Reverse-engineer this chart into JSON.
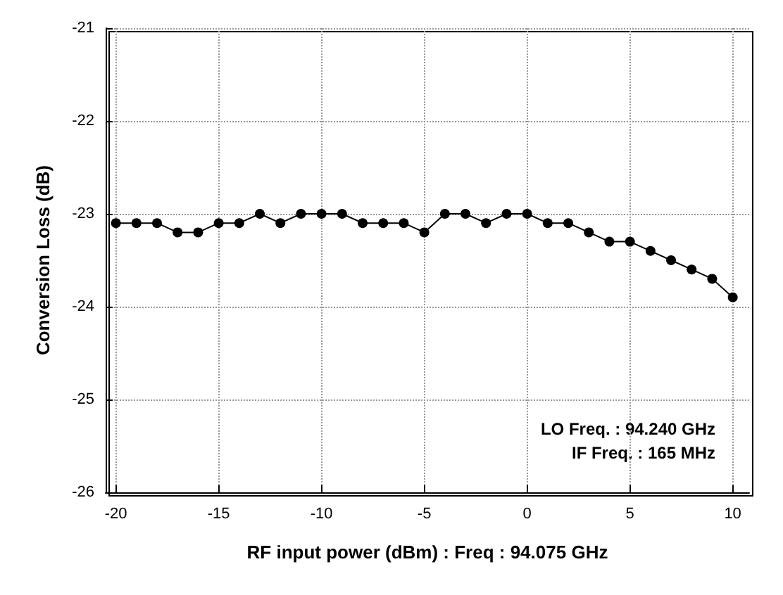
{
  "chart_data": {
    "type": "line",
    "xlabel": "RF input power (dBm) : Freq : 94.075 GHz",
    "ylabel": "Conversion Loss (dB)",
    "x": [
      -20,
      -19,
      -18,
      -17,
      -16,
      -15,
      -14,
      -13,
      -12,
      -11,
      -10,
      -9,
      -8,
      -7,
      -6,
      -5,
      -4,
      -3,
      -2,
      -1,
      0,
      1,
      2,
      3,
      4,
      5,
      6,
      7,
      8,
      9,
      10
    ],
    "series": [
      {
        "color": "#000000",
        "values": [
          -23.1,
          -23.1,
          -23.1,
          -23.2,
          -23.2,
          -23.1,
          -23.1,
          -23.0,
          -23.1,
          -23.0,
          -23.0,
          -23.0,
          -23.1,
          -23.1,
          -23.1,
          -23.2,
          -23.0,
          -23.0,
          -23.1,
          -23.0,
          -23.0,
          -23.1,
          -23.1,
          -23.2,
          -23.3,
          -23.3,
          -23.4,
          -23.5,
          -23.6,
          -23.7,
          -23.9
        ]
      }
    ],
    "xlim": [
      -20.5,
      10.8
    ],
    "xticks": [
      -20,
      -15,
      -10,
      -5,
      0,
      5,
      10
    ],
    "ylim": [
      -26,
      -21
    ],
    "yticks": [
      -26,
      -25,
      -24,
      -23,
      -22,
      -21
    ],
    "grid": true,
    "marker": "circle",
    "line_style": "solid",
    "annotations": [
      "LO Freq. : 94.240 GHz",
      "IF Freq. : 165 MHz"
    ]
  }
}
